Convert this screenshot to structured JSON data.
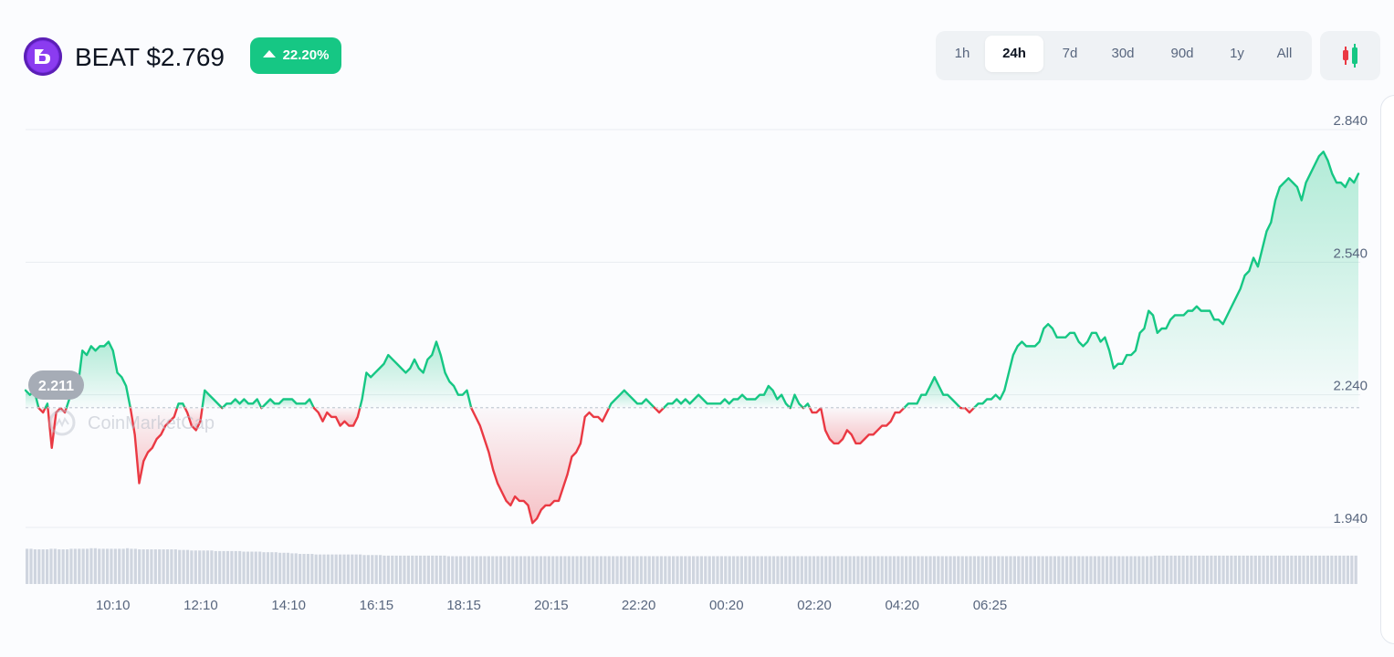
{
  "header": {
    "symbol": "BEAT",
    "price": "$2.769",
    "change": "22.20%",
    "change_direction": "up",
    "up_color": "#16c784",
    "down_color": "#ea3943"
  },
  "ranges": {
    "items": [
      "1h",
      "24h",
      "7d",
      "30d",
      "90d",
      "1y",
      "All"
    ],
    "active": "24h"
  },
  "chart_data": {
    "type": "area",
    "baseline": 2.211,
    "baseline_label": "2.211",
    "watermark": "CoinMarketCap",
    "ylim": [
      1.913,
      2.868
    ],
    "y_ticks": [
      "2.840",
      "2.540",
      "2.240",
      "1.940"
    ],
    "y_tick_values": [
      2.84,
      2.54,
      2.24,
      1.94
    ],
    "x_ticks": [
      "10:10",
      "12:10",
      "14:10",
      "16:15",
      "18:15",
      "20:15",
      "22:20",
      "00:20",
      "02:20",
      "04:20",
      "06:25"
    ],
    "x_tick_index": [
      20.0,
      40.1,
      60.2,
      80.3,
      100.3,
      120.3,
      140.3,
      160.4,
      180.5,
      200.6,
      220.7
    ],
    "grid": true,
    "series": [
      {
        "values": [
          2.25,
          2.24,
          2.25,
          2.21,
          2.2,
          2.22,
          2.12,
          2.2,
          2.21,
          2.2,
          2.23,
          2.25,
          2.26,
          2.34,
          2.33,
          2.35,
          2.34,
          2.35,
          2.35,
          2.36,
          2.34,
          2.29,
          2.28,
          2.26,
          2.21,
          2.15,
          2.04,
          2.09,
          2.11,
          2.12,
          2.14,
          2.15,
          2.17,
          2.18,
          2.19,
          2.22,
          2.22,
          2.2,
          2.17,
          2.16,
          2.18,
          2.25,
          2.24,
          2.23,
          2.22,
          2.21,
          2.22,
          2.22,
          2.23,
          2.22,
          2.23,
          2.22,
          2.22,
          2.23,
          2.21,
          2.22,
          2.23,
          2.22,
          2.22,
          2.23,
          2.23,
          2.23,
          2.22,
          2.22,
          2.22,
          2.23,
          2.21,
          2.2,
          2.18,
          2.2,
          2.19,
          2.19,
          2.17,
          2.18,
          2.17,
          2.17,
          2.19,
          2.23,
          2.29,
          2.28,
          2.29,
          2.3,
          2.31,
          2.33,
          2.32,
          2.31,
          2.3,
          2.29,
          2.3,
          2.32,
          2.3,
          2.29,
          2.32,
          2.33,
          2.36,
          2.33,
          2.29,
          2.27,
          2.26,
          2.24,
          2.24,
          2.25,
          2.21,
          2.19,
          2.17,
          2.14,
          2.11,
          2.07,
          2.04,
          2.02,
          2.0,
          1.99,
          2.01,
          2.0,
          2.0,
          1.99,
          1.95,
          1.96,
          1.98,
          1.99,
          1.99,
          2.0,
          2.0,
          2.03,
          2.06,
          2.1,
          2.11,
          2.13,
          2.19,
          2.2,
          2.19,
          2.19,
          2.18,
          2.2,
          2.22,
          2.23,
          2.24,
          2.25,
          2.24,
          2.23,
          2.22,
          2.22,
          2.23,
          2.22,
          2.21,
          2.2,
          2.21,
          2.22,
          2.22,
          2.23,
          2.22,
          2.23,
          2.22,
          2.23,
          2.24,
          2.23,
          2.22,
          2.22,
          2.22,
          2.22,
          2.23,
          2.22,
          2.23,
          2.23,
          2.24,
          2.23,
          2.23,
          2.23,
          2.24,
          2.24,
          2.26,
          2.25,
          2.23,
          2.24,
          2.22,
          2.21,
          2.24,
          2.22,
          2.21,
          2.22,
          2.2,
          2.2,
          2.21,
          2.16,
          2.14,
          2.13,
          2.13,
          2.14,
          2.16,
          2.15,
          2.13,
          2.13,
          2.14,
          2.15,
          2.15,
          2.16,
          2.17,
          2.17,
          2.18,
          2.2,
          2.2,
          2.21,
          2.22,
          2.22,
          2.22,
          2.24,
          2.24,
          2.26,
          2.28,
          2.26,
          2.24,
          2.24,
          2.23,
          2.22,
          2.21,
          2.21,
          2.2,
          2.21,
          2.22,
          2.22,
          2.23,
          2.23,
          2.24,
          2.23,
          2.25,
          2.29,
          2.33,
          2.35,
          2.36,
          2.35,
          2.35,
          2.35,
          2.36,
          2.39,
          2.4,
          2.39,
          2.37,
          2.37,
          2.37,
          2.38,
          2.38,
          2.36,
          2.35,
          2.36,
          2.38,
          2.38,
          2.36,
          2.37,
          2.34,
          2.3,
          2.31,
          2.31,
          2.33,
          2.33,
          2.34,
          2.38,
          2.39,
          2.43,
          2.42,
          2.38,
          2.39,
          2.39,
          2.41,
          2.42,
          2.42,
          2.42,
          2.43,
          2.43,
          2.44,
          2.43,
          2.43,
          2.43,
          2.41,
          2.41,
          2.4,
          2.42,
          2.44,
          2.46,
          2.48,
          2.51,
          2.52,
          2.55,
          2.53,
          2.57,
          2.61,
          2.63,
          2.68,
          2.71,
          2.72,
          2.73,
          2.72,
          2.71,
          2.68,
          2.72,
          2.74,
          2.76,
          2.78,
          2.79,
          2.77,
          2.74,
          2.72,
          2.72,
          2.71,
          2.73,
          2.72,
          2.74
        ]
      }
    ],
    "volume_values": [
      0.62,
      0.62,
      0.61,
      0.61,
      0.61,
      0.61,
      0.62,
      0.62,
      0.61,
      0.61,
      0.61,
      0.62,
      0.62,
      0.62,
      0.62,
      0.62,
      0.63,
      0.63,
      0.62,
      0.62,
      0.62,
      0.62,
      0.62,
      0.62,
      0.62,
      0.63,
      0.62,
      0.62,
      0.61,
      0.61,
      0.61,
      0.61,
      0.61,
      0.61,
      0.61,
      0.61,
      0.61,
      0.61,
      0.6,
      0.6,
      0.6,
      0.59,
      0.59,
      0.59,
      0.59,
      0.59,
      0.59,
      0.58,
      0.58,
      0.58,
      0.58,
      0.58,
      0.58,
      0.58,
      0.57,
      0.57,
      0.57,
      0.57,
      0.57,
      0.56,
      0.56,
      0.56,
      0.56,
      0.55,
      0.55,
      0.55,
      0.54,
      0.54,
      0.53,
      0.53,
      0.53,
      0.53,
      0.52,
      0.52,
      0.52,
      0.52,
      0.52,
      0.52,
      0.52,
      0.52,
      0.52,
      0.52,
      0.52,
      0.52,
      0.51,
      0.51,
      0.51,
      0.51,
      0.51,
      0.5,
      0.5,
      0.5,
      0.5,
      0.5,
      0.5,
      0.5,
      0.5,
      0.5,
      0.5,
      0.5,
      0.5,
      0.5,
      0.5,
      0.5,
      0.5,
      0.49,
      0.49,
      0.49,
      0.49,
      0.49,
      0.49,
      0.49,
      0.49,
      0.49,
      0.49,
      0.49,
      0.49,
      0.49,
      0.49,
      0.49,
      0.49,
      0.49,
      0.49,
      0.49,
      0.49,
      0.49,
      0.49,
      0.49,
      0.49,
      0.49,
      0.49,
      0.49,
      0.49,
      0.49,
      0.49,
      0.49,
      0.49,
      0.49,
      0.49,
      0.49,
      0.49,
      0.49,
      0.49,
      0.49,
      0.49,
      0.49,
      0.49,
      0.49,
      0.49,
      0.49,
      0.49,
      0.49,
      0.49,
      0.49,
      0.49,
      0.49,
      0.49,
      0.49,
      0.49,
      0.49,
      0.49,
      0.49,
      0.49,
      0.49,
      0.49,
      0.49,
      0.49,
      0.49,
      0.49,
      0.49,
      0.49,
      0.49,
      0.49,
      0.49,
      0.49,
      0.49,
      0.49,
      0.49,
      0.49,
      0.49,
      0.49,
      0.49,
      0.49,
      0.49,
      0.49,
      0.49,
      0.49,
      0.49,
      0.49,
      0.49,
      0.49,
      0.49,
      0.49,
      0.49,
      0.49,
      0.49,
      0.49,
      0.49,
      0.49,
      0.49,
      0.49,
      0.49,
      0.49,
      0.49,
      0.49,
      0.49,
      0.49,
      0.49,
      0.49,
      0.49,
      0.49,
      0.49,
      0.49,
      0.49,
      0.49,
      0.49,
      0.49,
      0.49,
      0.49,
      0.49,
      0.49,
      0.49,
      0.49,
      0.49,
      0.49,
      0.49,
      0.49,
      0.49,
      0.49,
      0.49,
      0.49,
      0.49,
      0.49,
      0.49,
      0.49,
      0.49,
      0.49,
      0.49,
      0.49,
      0.49,
      0.49,
      0.49,
      0.49,
      0.49,
      0.49,
      0.49,
      0.49,
      0.49,
      0.49,
      0.49,
      0.49,
      0.49,
      0.49,
      0.49,
      0.49,
      0.49,
      0.49,
      0.49,
      0.49,
      0.49,
      0.49,
      0.49,
      0.49,
      0.49,
      0.49,
      0.49,
      0.49,
      0.49,
      0.49,
      0.49,
      0.49,
      0.49,
      0.49,
      0.49,
      0.49,
      0.49,
      0.49,
      0.49,
      0.49,
      0.49,
      0.49,
      0.5,
      0.5,
      0.5,
      0.5,
      0.5,
      0.5,
      0.5,
      0.5,
      0.5,
      0.5,
      0.5,
      0.5,
      0.5,
      0.5,
      0.5,
      0.5,
      0.5,
      0.5,
      0.5,
      0.5,
      0.5,
      0.5,
      0.5,
      0.5,
      0.5,
      0.5,
      0.5,
      0.5,
      0.5,
      0.5,
      0.5,
      0.5,
      0.5,
      0.5,
      0.5,
      0.5,
      0.5,
      0.5,
      0.5,
      0.5,
      0.5,
      0.5,
      0.5,
      0.5,
      0.5,
      0.5,
      0.5,
      0.5,
      0.5,
      0.5,
      0.5
    ]
  }
}
